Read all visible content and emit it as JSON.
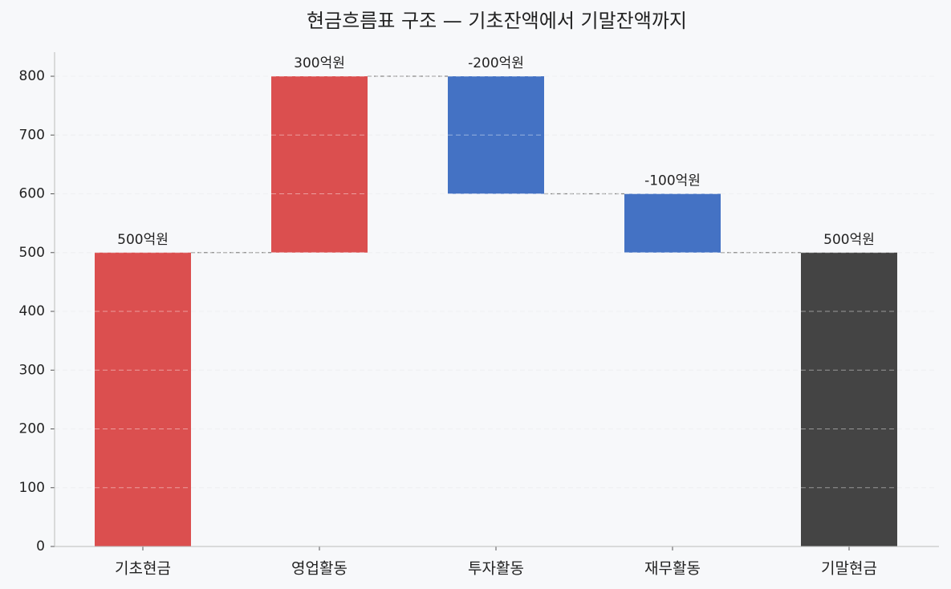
{
  "chart_data": {
    "type": "waterfall",
    "title": "현금흐름표 구조 — 기초잔액에서 기말잔액까지",
    "categories": [
      "기초현금",
      "영업활동",
      "투자활동",
      "재무활동",
      "기말현금"
    ],
    "values": [
      500,
      300,
      -200,
      -100,
      500
    ],
    "value_labels": [
      "500억원",
      "300억원",
      "-200억원",
      "-100억원",
      "500억원"
    ],
    "measure": [
      "absolute",
      "relative",
      "relative",
      "relative",
      "absolute"
    ],
    "colors": [
      "#db4f4f",
      "#db4f4f",
      "#4472c4",
      "#4472c4",
      "#444444"
    ],
    "ylim": [
      0,
      841
    ],
    "yticks": [
      0,
      100,
      200,
      300,
      400,
      500,
      600,
      700,
      800
    ],
    "grid": true
  }
}
